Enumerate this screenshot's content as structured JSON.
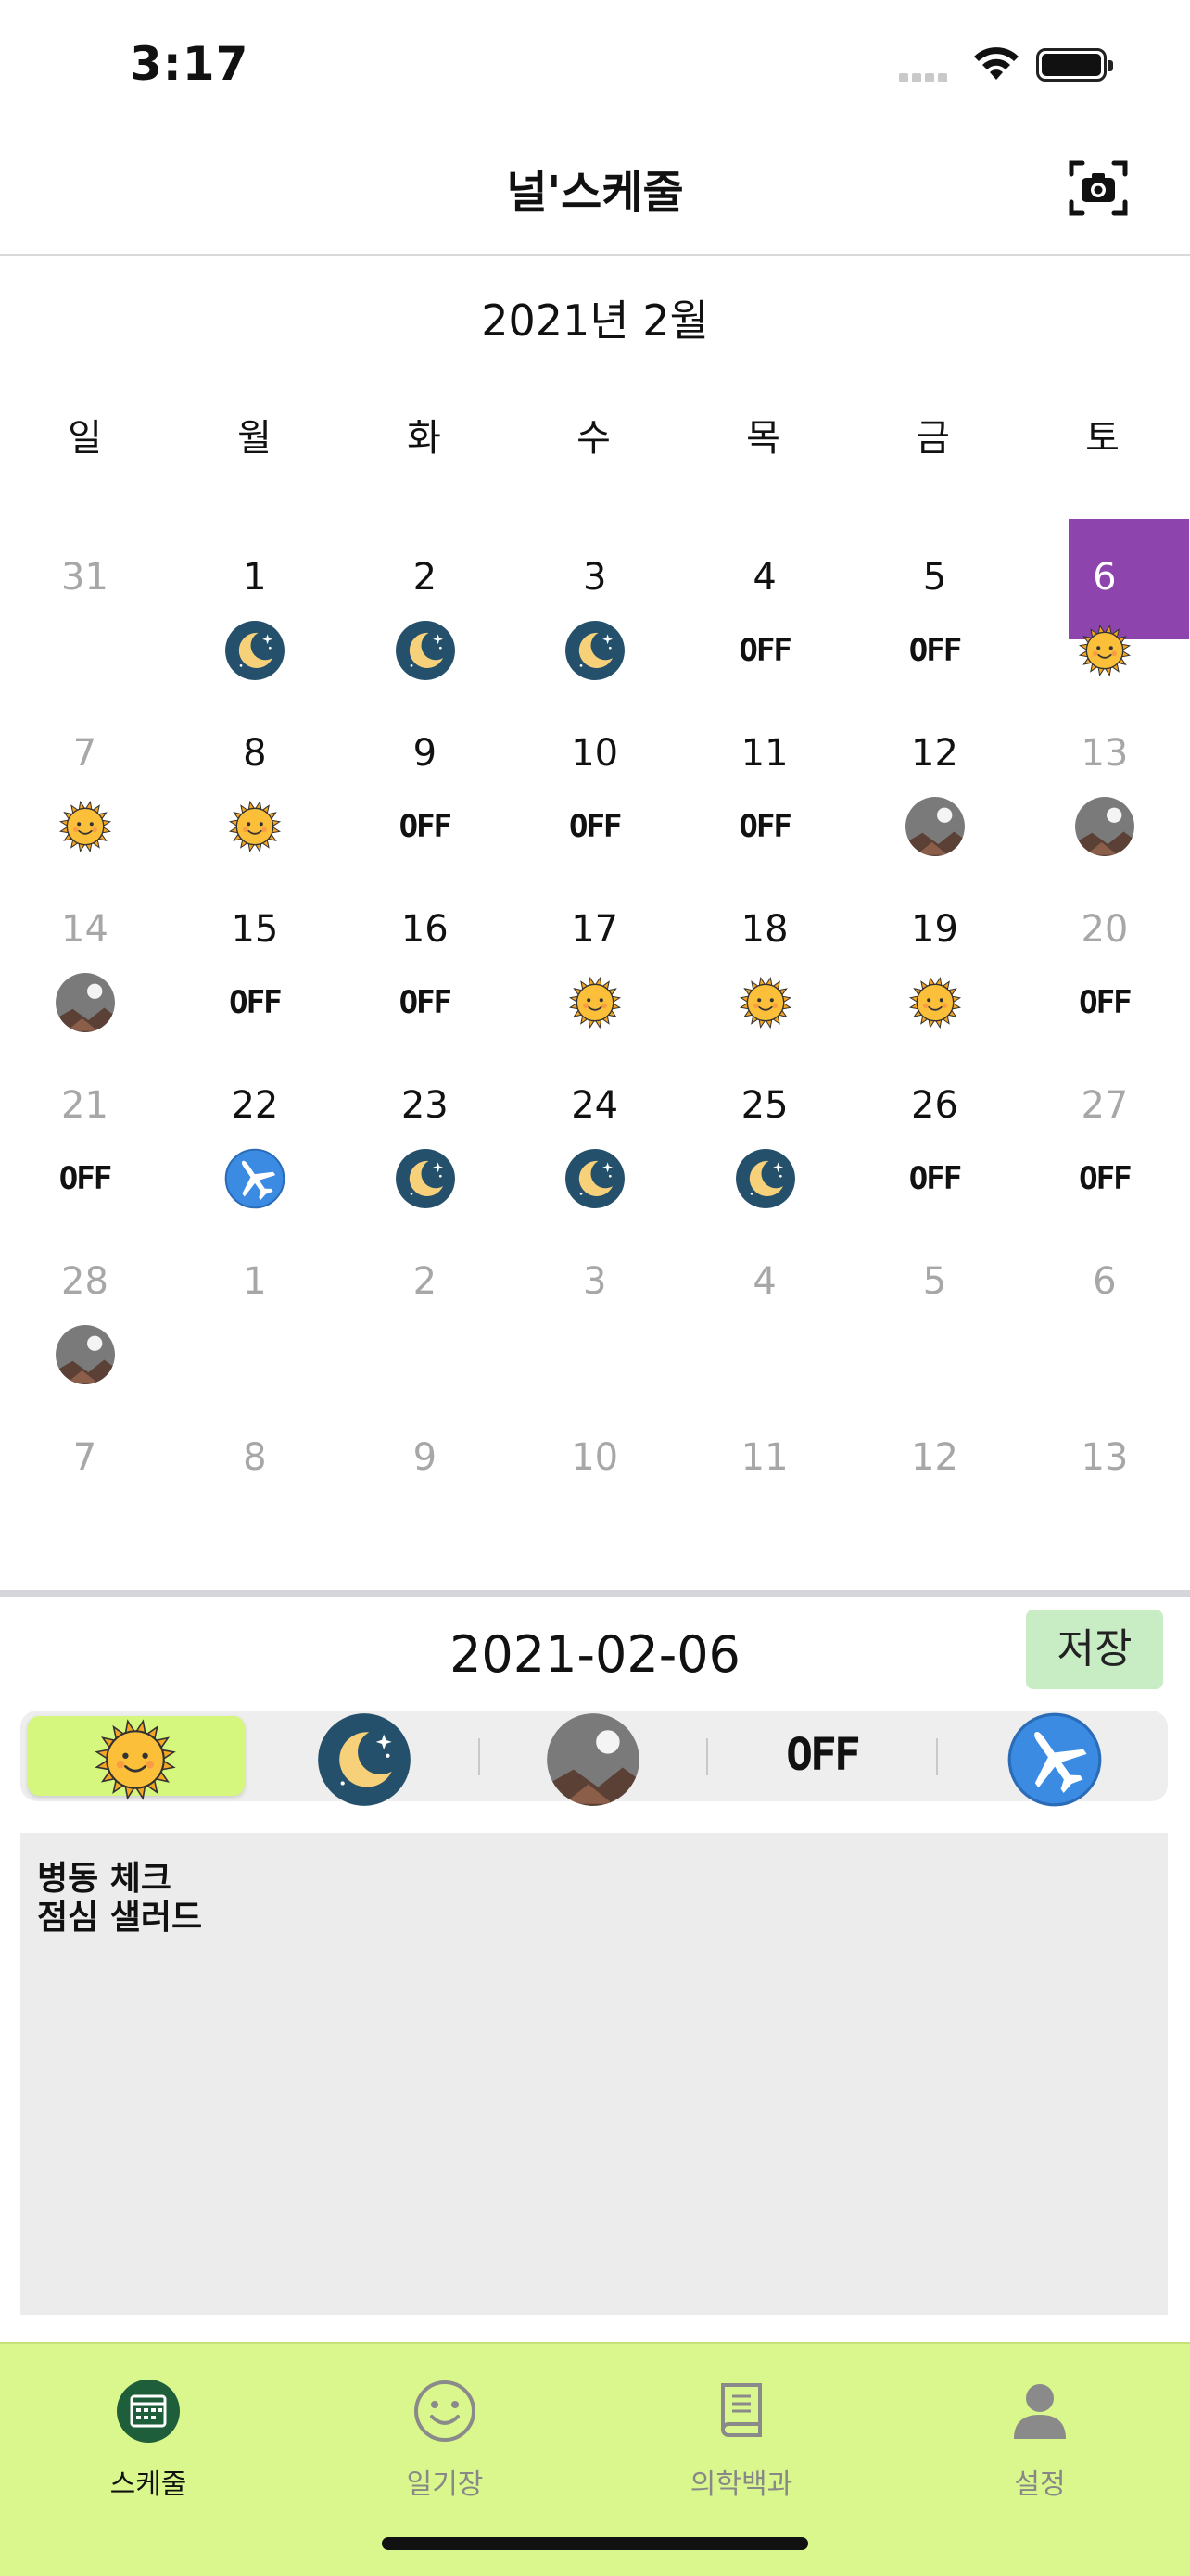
{
  "status": {
    "time": "3:17"
  },
  "nav": {
    "title": "널'스케줄",
    "camera_icon": "camera-icon"
  },
  "calendar": {
    "month_label": "2021년 2월",
    "weekdays": [
      "일",
      "월",
      "화",
      "수",
      "목",
      "금",
      "토"
    ],
    "days": [
      {
        "n": "31",
        "dim": true,
        "icon": ""
      },
      {
        "n": "1",
        "icon": "moon"
      },
      {
        "n": "2",
        "icon": "moon"
      },
      {
        "n": "3",
        "icon": "moon"
      },
      {
        "n": "4",
        "icon": "off"
      },
      {
        "n": "5",
        "icon": "off"
      },
      {
        "n": "6",
        "icon": "sun",
        "sel": true,
        "dim": true
      },
      {
        "n": "7",
        "dim": true,
        "icon": "sun"
      },
      {
        "n": "8",
        "icon": "sun"
      },
      {
        "n": "9",
        "icon": "off"
      },
      {
        "n": "10",
        "icon": "off"
      },
      {
        "n": "11",
        "icon": "off"
      },
      {
        "n": "12",
        "icon": "mountain"
      },
      {
        "n": "13",
        "dim": true,
        "icon": "mountain"
      },
      {
        "n": "14",
        "dim": true,
        "icon": "mountain"
      },
      {
        "n": "15",
        "icon": "off"
      },
      {
        "n": "16",
        "icon": "off"
      },
      {
        "n": "17",
        "icon": "sun"
      },
      {
        "n": "18",
        "icon": "sun"
      },
      {
        "n": "19",
        "icon": "sun"
      },
      {
        "n": "20",
        "dim": true,
        "icon": "off"
      },
      {
        "n": "21",
        "dim": true,
        "icon": "off"
      },
      {
        "n": "22",
        "icon": "plane"
      },
      {
        "n": "23",
        "icon": "moon"
      },
      {
        "n": "24",
        "icon": "moon"
      },
      {
        "n": "25",
        "icon": "moon"
      },
      {
        "n": "26",
        "icon": "off"
      },
      {
        "n": "27",
        "dim": true,
        "icon": "off"
      },
      {
        "n": "28",
        "dim": true,
        "icon": "mountain"
      },
      {
        "n": "1",
        "dim": true,
        "icon": ""
      },
      {
        "n": "2",
        "dim": true,
        "icon": ""
      },
      {
        "n": "3",
        "dim": true,
        "icon": ""
      },
      {
        "n": "4",
        "dim": true,
        "icon": ""
      },
      {
        "n": "5",
        "dim": true,
        "icon": ""
      },
      {
        "n": "6",
        "dim": true,
        "icon": ""
      },
      {
        "n": "7",
        "dim": true,
        "icon": ""
      },
      {
        "n": "8",
        "dim": true,
        "icon": ""
      },
      {
        "n": "9",
        "dim": true,
        "icon": ""
      },
      {
        "n": "10",
        "dim": true,
        "icon": ""
      },
      {
        "n": "11",
        "dim": true,
        "icon": ""
      },
      {
        "n": "12",
        "dim": true,
        "icon": ""
      },
      {
        "n": "13",
        "dim": true,
        "icon": ""
      }
    ],
    "off_text": "OFF"
  },
  "detail": {
    "date": "2021-02-06",
    "save_label": "저장",
    "options": [
      "sun",
      "moon",
      "mountain",
      "off",
      "plane"
    ],
    "selected": "sun",
    "memo_lines": [
      "병동 체크",
      "점심 샐러드"
    ]
  },
  "colors": {
    "selected_day": "#8e44ad",
    "tabbar": "#d9f78c",
    "save_bg": "#c8ecc4",
    "seg_selected": "#d6f77d"
  },
  "tabs": [
    {
      "label": "스케줄",
      "icon": "calendar-icon",
      "active": true
    },
    {
      "label": "일기장",
      "icon": "smiley-icon",
      "active": false
    },
    {
      "label": "의학백과",
      "icon": "book-icon",
      "active": false
    },
    {
      "label": "설정",
      "icon": "person-icon",
      "active": false
    }
  ]
}
